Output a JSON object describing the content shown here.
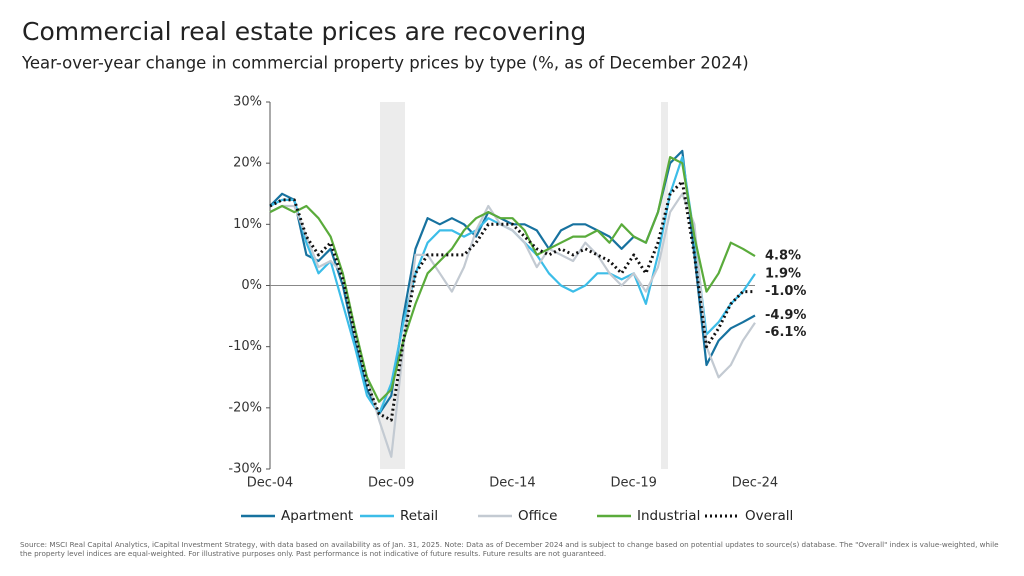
{
  "chart_data": {
    "type": "line",
    "title": "Commercial real estate prices are recovering",
    "subtitle": "Year-over-year change in commercial property prices by type (%, as of December 2024)",
    "footnote": "Source: MSCI Real Capital Analytics, iCapital Investment Strategy, with data based on availability as of Jan. 31, 2025. Note: Data as of December 2024 and is subject to change based on potential updates to source(s) database. The \"Overall\" index is value-weighted, while the property level indices are equal-weighted. For illustrative purposes only. Past performance is not indicative of future results. Future results are not guaranteed.",
    "categories": [
      "Dec-04",
      null,
      null,
      null,
      null,
      null,
      null,
      null,
      null,
      null,
      "Dec-09",
      null,
      null,
      null,
      null,
      null,
      null,
      null,
      null,
      null,
      "Dec-14",
      null,
      null,
      null,
      null,
      null,
      null,
      null,
      null,
      null,
      "Dec-19",
      null,
      null,
      null,
      null,
      null,
      null,
      null,
      null,
      null,
      "Dec-24"
    ],
    "ylim": [
      -30,
      30
    ],
    "yticks": [
      {
        "value": -30,
        "label": "-30%"
      },
      {
        "value": -20,
        "label": "-20%"
      },
      {
        "value": -10,
        "label": "-10%"
      },
      {
        "value": 0,
        "label": "0%"
      },
      {
        "value": 10,
        "label": "10%"
      },
      {
        "value": 20,
        "label": "20%"
      },
      {
        "value": 30,
        "label": "30%"
      }
    ],
    "series": [
      {
        "name": "Apartment",
        "color": "#17729f",
        "line_style": "solid",
        "values": [
          13,
          15,
          14,
          5,
          4,
          6,
          0,
          -9,
          -17,
          -21,
          -18,
          -5,
          6,
          11,
          10,
          11,
          10,
          8,
          12,
          11,
          10,
          10,
          9,
          6,
          9,
          10,
          10,
          9,
          8,
          6,
          8,
          7,
          12,
          20,
          22,
          5,
          -13,
          -9,
          -7,
          -6,
          -4.9
        ],
        "value_labels": [
          null,
          null,
          null,
          null,
          null,
          null,
          null,
          null,
          null,
          null,
          null,
          null,
          null,
          null,
          null,
          null,
          null,
          null,
          null,
          null,
          null,
          null,
          null,
          null,
          null,
          null,
          null,
          null,
          null,
          null,
          null,
          null,
          null,
          null,
          null,
          null,
          null,
          null,
          null,
          null,
          "-4.9%"
        ]
      },
      {
        "name": "Retail",
        "color": "#3cbde8",
        "line_style": "solid",
        "values": [
          13,
          14,
          14,
          7,
          2,
          4,
          -3,
          -10,
          -18,
          -21,
          -16,
          -6,
          2,
          7,
          9,
          9,
          8,
          9,
          11,
          10,
          9,
          7,
          5,
          2,
          0,
          -1,
          0,
          2,
          2,
          1,
          2,
          -3,
          5,
          15,
          21,
          8,
          -8,
          -6,
          -3,
          -1,
          1.9
        ],
        "value_labels": [
          null,
          null,
          null,
          null,
          null,
          null,
          null,
          null,
          null,
          null,
          null,
          null,
          null,
          null,
          null,
          null,
          null,
          null,
          null,
          null,
          null,
          null,
          null,
          null,
          null,
          null,
          null,
          null,
          null,
          null,
          null,
          null,
          null,
          null,
          null,
          null,
          null,
          null,
          null,
          null,
          "1.9%"
        ]
      },
      {
        "name": "Office",
        "color": "#c3cad2",
        "line_style": "solid",
        "values": [
          12,
          13,
          13,
          8,
          3,
          4,
          2,
          -8,
          -15,
          -22,
          -28,
          -10,
          5,
          5,
          2,
          -1,
          3,
          9,
          13,
          10,
          9,
          7,
          3,
          6,
          5,
          4,
          7,
          5,
          2,
          0,
          2,
          -1,
          3,
          12,
          15,
          10,
          -10,
          -15,
          -13,
          -9,
          -6.1
        ],
        "value_labels": [
          null,
          null,
          null,
          null,
          null,
          null,
          null,
          null,
          null,
          null,
          null,
          null,
          null,
          null,
          null,
          null,
          null,
          null,
          null,
          null,
          null,
          null,
          null,
          null,
          null,
          null,
          null,
          null,
          null,
          null,
          null,
          null,
          null,
          null,
          null,
          null,
          null,
          null,
          null,
          null,
          "-6.1%"
        ],
        "label_color": "#8a97a3"
      },
      {
        "name": "Industrial",
        "color": "#5aab3b",
        "line_style": "solid",
        "values": [
          12,
          13,
          12,
          13,
          11,
          8,
          2,
          -7,
          -15,
          -19,
          -17,
          -9,
          -3,
          2,
          4,
          6,
          9,
          11,
          12,
          11,
          11,
          9,
          5,
          6,
          7,
          8,
          8,
          9,
          7,
          10,
          8,
          7,
          12,
          21,
          20,
          8,
          -1,
          2,
          7,
          6,
          4.8
        ],
        "value_labels": [
          null,
          null,
          null,
          null,
          null,
          null,
          null,
          null,
          null,
          null,
          null,
          null,
          null,
          null,
          null,
          null,
          null,
          null,
          null,
          null,
          null,
          null,
          null,
          null,
          null,
          null,
          null,
          null,
          null,
          null,
          null,
          null,
          null,
          null,
          null,
          null,
          null,
          null,
          null,
          null,
          "4.8%"
        ]
      },
      {
        "name": "Overall",
        "color": "#111111",
        "line_style": "dotted",
        "values": [
          13,
          14,
          14,
          8,
          5,
          7,
          1,
          -8,
          -16,
          -21,
          -22,
          -9,
          2,
          5,
          5,
          5,
          5,
          7,
          10,
          10,
          10,
          8,
          6,
          5,
          6,
          5,
          6,
          5,
          4,
          2,
          5,
          2,
          7,
          15,
          17,
          5,
          -10,
          -7,
          -3,
          -1,
          -1.0
        ],
        "value_labels": [
          null,
          null,
          null,
          null,
          null,
          null,
          null,
          null,
          null,
          null,
          null,
          null,
          null,
          null,
          null,
          null,
          null,
          null,
          null,
          null,
          null,
          null,
          null,
          null,
          null,
          null,
          null,
          null,
          null,
          null,
          null,
          null,
          null,
          null,
          null,
          null,
          null,
          null,
          null,
          null,
          "-1.0%"
        ]
      }
    ]
  }
}
